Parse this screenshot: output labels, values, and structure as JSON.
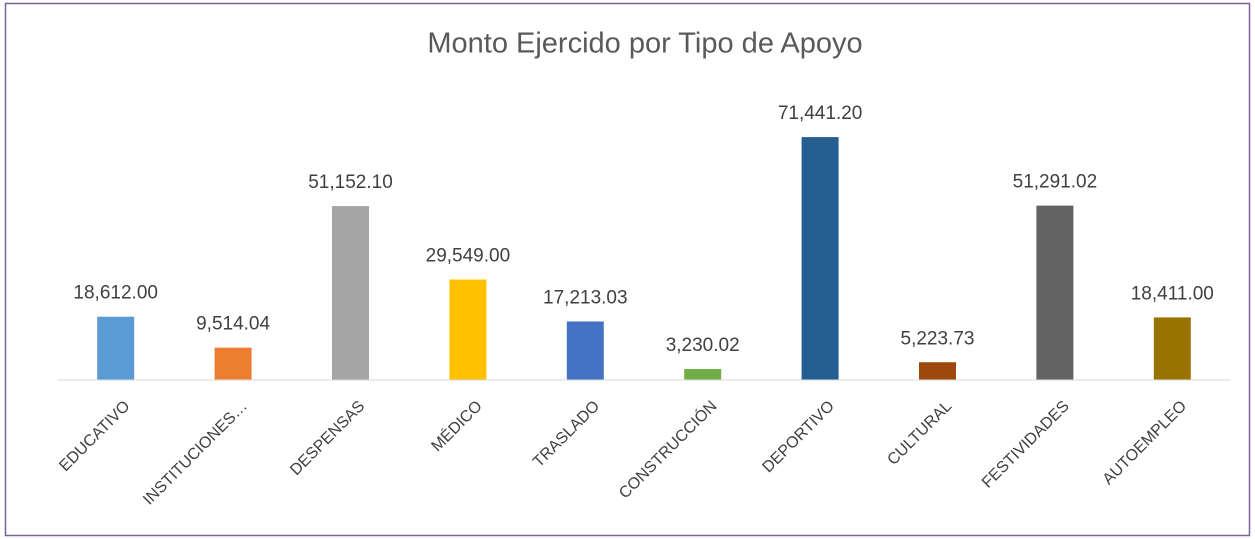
{
  "chart_data": {
    "type": "bar",
    "title": "Monto Ejercido por Tipo de Apoyo",
    "categories": [
      "EDUCATIVO",
      "INSTITUCIONES…",
      "DESPENSAS",
      "MÉDICO",
      "TRASLADO",
      "CONSTRUCCIÓN",
      "DEPORTIVO",
      "CULTURAL",
      "FESTIVIDADES",
      "AUTOEMPLEO"
    ],
    "values": [
      18612.0,
      9514.04,
      51152.1,
      29549.0,
      17213.03,
      3230.02,
      71441.2,
      5223.73,
      51291.02,
      18411.0
    ],
    "value_labels": [
      "18,612.00",
      "9,514.04",
      "51,152.10",
      "29,549.00",
      "17,213.03",
      "3,230.02",
      "71,441.20",
      "5,223.73",
      "51,291.02",
      "18,411.00"
    ],
    "colors": [
      "#5b9bd5",
      "#ed7d31",
      "#a5a5a5",
      "#ffc000",
      "#4472c4",
      "#70ad47",
      "#255e91",
      "#9e480e",
      "#636363",
      "#997300"
    ],
    "ylim": [
      0,
      80000
    ]
  }
}
